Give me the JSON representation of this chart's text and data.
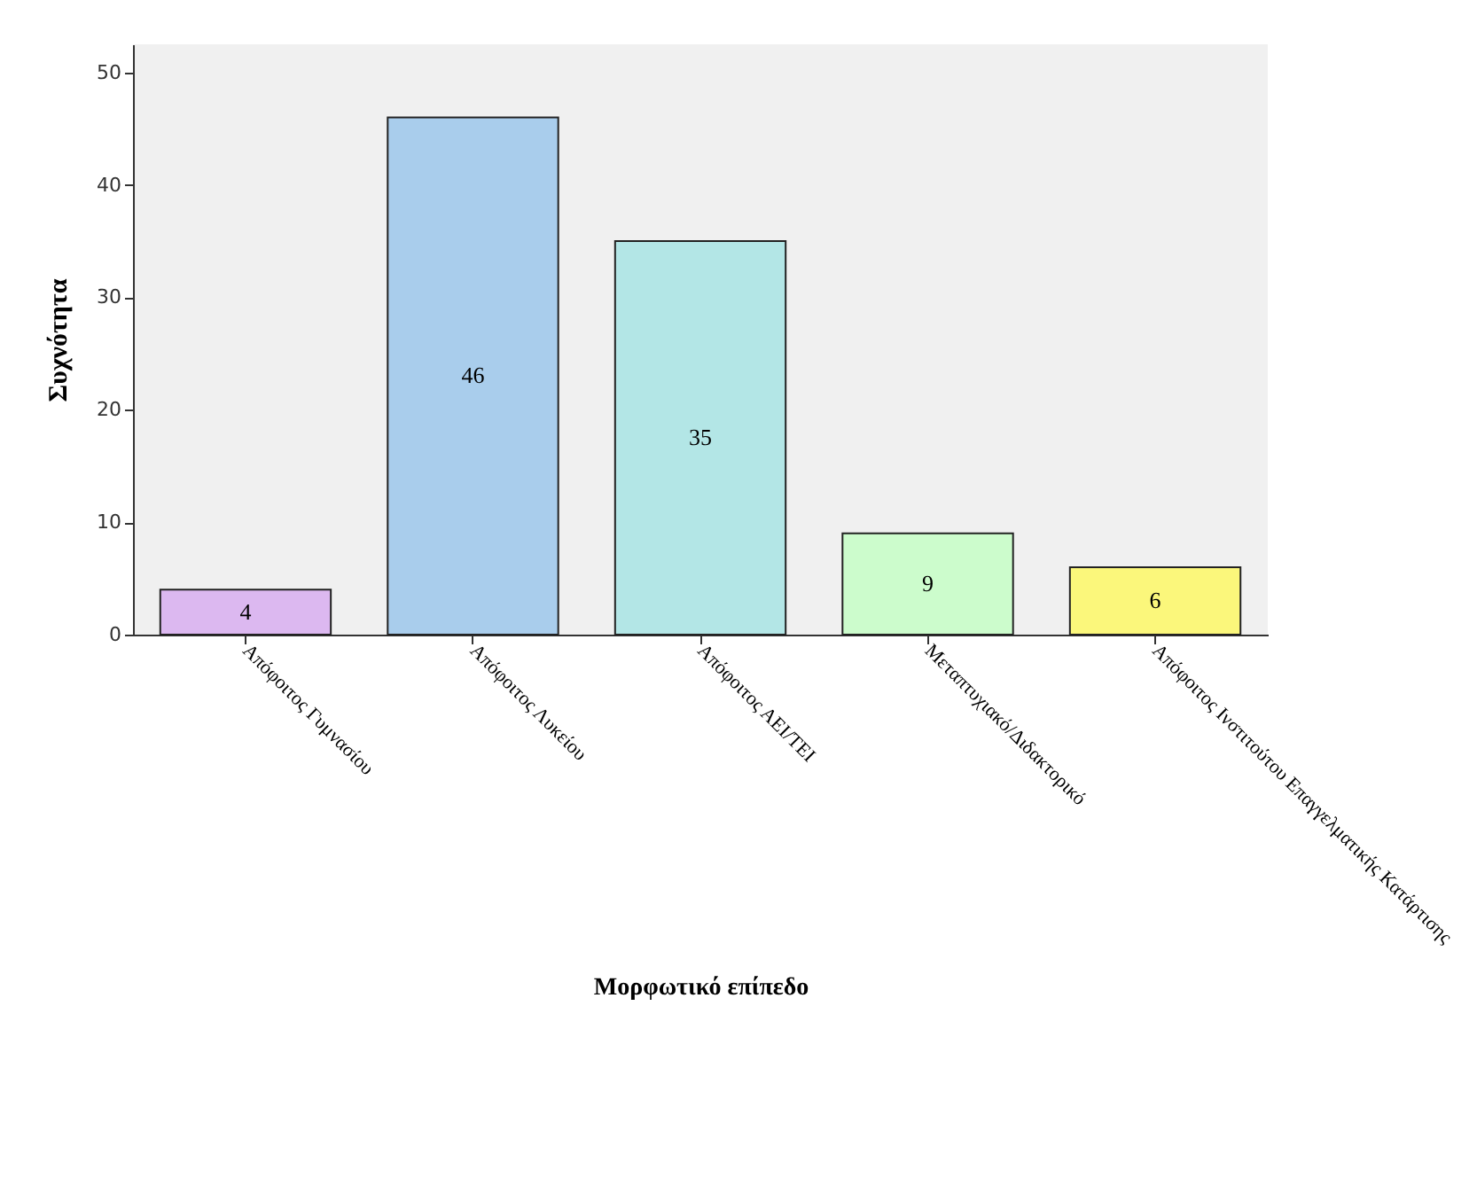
{
  "chart_data": {
    "type": "bar",
    "xlabel": "Μορφωτικό επίπεδο",
    "ylabel": "Συχνότητα",
    "categories": [
      "Απόφοιτος Γυμνασίου",
      "Απόφοιτος Λυκείου",
      "Απόφοιτος ΑΕΙ/ΤΕΙ",
      "Μεταπτυχιακό/Διδακτορικό",
      "Απόφοιτος Ινστιτούτου Επαγγελματικής Κατάρτισης"
    ],
    "values": [
      4,
      46,
      35,
      9,
      6
    ],
    "colors": [
      "#dcb8f0",
      "#a9cdec",
      "#b3e6e6",
      "#ccfccc",
      "#fbf77b"
    ],
    "ylim": [
      0,
      52.5
    ],
    "yticks": [
      0,
      10,
      20,
      30,
      40,
      50
    ],
    "data_labels": true,
    "grid": false
  }
}
